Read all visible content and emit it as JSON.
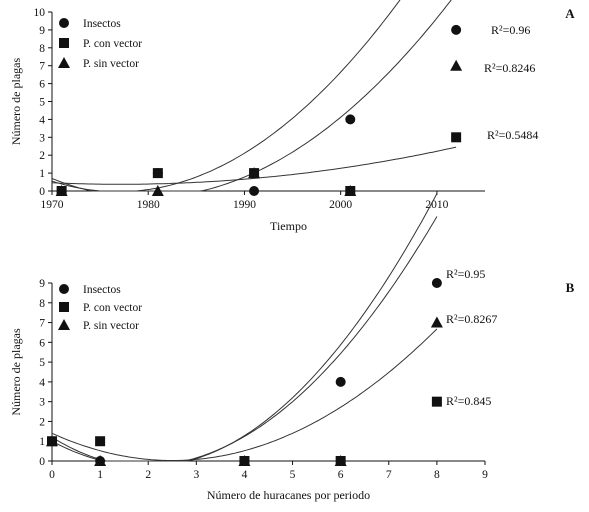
{
  "chart_data": [
    {
      "panel_label": "A",
      "type": "scatter",
      "xlabel": "Tiempo",
      "ylabel": "Número de plagas",
      "xlim": [
        1970,
        2015
      ],
      "ylim": [
        0,
        10
      ],
      "xticks": [
        1970,
        1980,
        1990,
        2000,
        2010
      ],
      "yticks": [
        0,
        1,
        2,
        3,
        4,
        5,
        6,
        7,
        8,
        9,
        10
      ],
      "legend_position": "top-left",
      "series": [
        {
          "name": "Insectos",
          "marker": "circle",
          "x": [
            1971,
            1981,
            1991,
            2001,
            2012
          ],
          "y": [
            0,
            1,
            0,
            4,
            9
          ],
          "r2": "R²=0.96",
          "fit": [
            0.55,
            -0.172,
            0.0125
          ]
        },
        {
          "name": "P. con vector",
          "marker": "square",
          "x": [
            1971,
            1981,
            1991,
            2001,
            2012
          ],
          "y": [
            0,
            1,
            1,
            0,
            3
          ],
          "r2": "R²=0.5484",
          "fit": [
            0.46,
            -0.024,
            0.0017
          ]
        },
        {
          "name": "P. sin vector",
          "marker": "triangle",
          "x": [
            1971,
            1981,
            1991,
            2001,
            2012
          ],
          "y": [
            0,
            0,
            1,
            0,
            7
          ],
          "r2": "R²=0.8246",
          "fit": [
            0.7,
            -0.216,
            0.011
          ]
        }
      ]
    },
    {
      "panel_label": "B",
      "type": "scatter",
      "xlabel": "Número de huracanes por periodo",
      "ylabel": "Número de plagas",
      "xlim": [
        0,
        9
      ],
      "ylim": [
        0,
        9
      ],
      "xticks": [
        0,
        1,
        2,
        3,
        4,
        5,
        6,
        7,
        8,
        9
      ],
      "yticks": [
        0,
        1,
        2,
        3,
        4,
        5,
        6,
        7,
        8,
        9
      ],
      "legend_position": "top-left",
      "series": [
        {
          "name": "Insectos",
          "marker": "circle",
          "x": [
            0,
            1,
            4,
            6,
            8
          ],
          "y": [
            1,
            0,
            0,
            4,
            9
          ],
          "r2": "R²=0.95",
          "fit": [
            1.0,
            -1.3,
            0.34
          ]
        },
        {
          "name": "P. con vector",
          "marker": "square",
          "x": [
            0,
            1,
            4,
            6,
            8
          ],
          "y": [
            1,
            1,
            0,
            0,
            3
          ],
          "r2": "R²=0.845",
          "fit": [
            1.4,
            -1.1,
            0.22
          ]
        },
        {
          "name": "P. sin vector",
          "marker": "triangle",
          "x": [
            0,
            1,
            4,
            6,
            8
          ],
          "y": [
            1,
            0,
            0,
            0,
            7
          ],
          "r2": "R²=0.8267",
          "fit": [
            1.2,
            -1.5,
            0.38
          ]
        }
      ]
    }
  ]
}
